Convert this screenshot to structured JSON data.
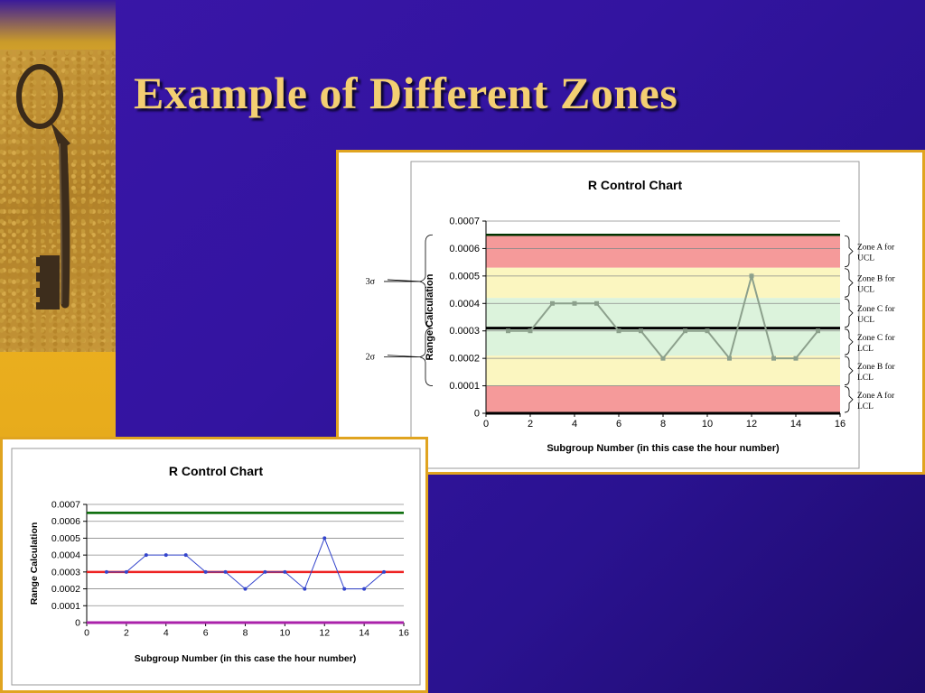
{
  "slide": {
    "title": "Example of Different Zones",
    "colors": {
      "background": "#3314a0",
      "title": "#f3cf72",
      "accent_band": "#f0b62a",
      "panel_border": "#e0a420"
    },
    "image": "antique-key-photo"
  },
  "chart_data": [
    {
      "type": "line",
      "title": "R Control Chart",
      "xlabel": "Subgroup Number (in this case the hour number)",
      "ylabel": "Range Calculation",
      "xlim": [
        0,
        16
      ],
      "ylim": [
        0,
        0.0007
      ],
      "x_ticks": [
        "0",
        "2",
        "4",
        "6",
        "8",
        "10",
        "12",
        "14",
        "16"
      ],
      "y_ticks": [
        "0",
        "0.0001",
        "0.0002",
        "0.0003",
        "0.0004",
        "0.0005",
        "0.0006",
        "0.0007"
      ],
      "x": [
        1,
        2,
        3,
        4,
        5,
        6,
        7,
        8,
        9,
        10,
        11,
        12,
        13,
        14,
        15
      ],
      "series": [
        {
          "values": [
            0.0003,
            0.0003,
            0.0004,
            0.0004,
            0.0004,
            0.0003,
            0.0003,
            0.0002,
            0.0003,
            0.0003,
            0.0002,
            0.0005,
            0.0002,
            0.0002,
            0.0003
          ],
          "color": "#8ca08c"
        }
      ],
      "ucl": 0.00065,
      "center_line": 0.00031,
      "lcl": 0,
      "zones": [
        {
          "from": 0.00053,
          "to": 0.00065,
          "color": "#f59a9a",
          "label": "Zone A for UCL"
        },
        {
          "from": 0.00042,
          "to": 0.00053,
          "color": "#fbf6c0",
          "label": "Zone B for UCL"
        },
        {
          "from": 0.00031,
          "to": 0.00042,
          "color": "#dcf3dc",
          "label": "Zone C for UCL"
        },
        {
          "from": 0.00021,
          "to": 0.00031,
          "color": "#dcf3dc",
          "label": "Zone C for LCL"
        },
        {
          "from": 0.0001,
          "to": 0.00021,
          "color": "#fbf6c0",
          "label": "Zone B for LCL"
        },
        {
          "from": 0.0,
          "to": 0.0001,
          "color": "#f59a9a",
          "label": "Zone A for LCL"
        }
      ],
      "annotations": [
        {
          "text": "3σ",
          "from": 0.00031,
          "to": 0.00065
        },
        {
          "text": "2σ",
          "from": 0.0001,
          "to": 0.00031
        }
      ],
      "grid": true
    },
    {
      "type": "line",
      "title": "R Control Chart",
      "xlabel": "Subgroup Number (in this case the hour number)",
      "ylabel": "Range Calculation",
      "xlim": [
        0,
        16
      ],
      "ylim": [
        0,
        0.0007
      ],
      "x_ticks": [
        "0",
        "2",
        "4",
        "6",
        "8",
        "10",
        "12",
        "14",
        "16"
      ],
      "y_ticks": [
        "0",
        "0.0001",
        "0.0002",
        "0.0003",
        "0.0004",
        "0.0005",
        "0.0006",
        "0.0007"
      ],
      "x": [
        1,
        2,
        3,
        4,
        5,
        6,
        7,
        8,
        9,
        10,
        11,
        12,
        13,
        14,
        15
      ],
      "series": [
        {
          "values": [
            0.0003,
            0.0003,
            0.0004,
            0.0004,
            0.0004,
            0.0003,
            0.0003,
            0.0002,
            0.0003,
            0.0003,
            0.0002,
            0.0005,
            0.0002,
            0.0002,
            0.0003
          ],
          "color": "#3344cc"
        }
      ],
      "ucl": 0.00065,
      "ucl_color": "#006600",
      "center_line": 0.0003,
      "center_color": "#ee2222",
      "lcl": 0,
      "lcl_color": "#aa22aa",
      "grid": true
    }
  ]
}
